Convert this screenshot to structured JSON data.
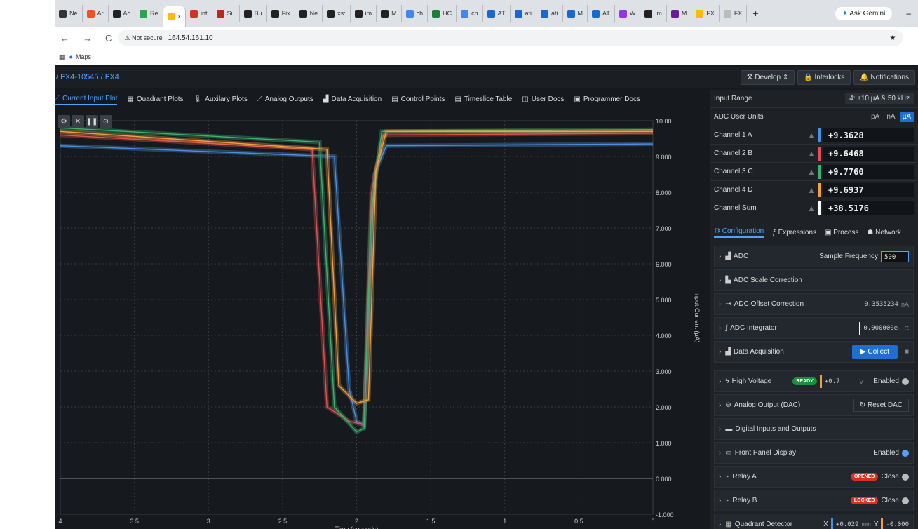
{
  "browser": {
    "tabs": [
      {
        "label": "Ne",
        "color": "#333"
      },
      {
        "label": "Ar",
        "color": "#f25022"
      },
      {
        "label": "Ac",
        "color": "#222"
      },
      {
        "label": "Re",
        "color": "#2da44e"
      },
      {
        "label": "x",
        "color": "#fbbc04",
        "active": true
      },
      {
        "label": "int",
        "color": "#d93025"
      },
      {
        "label": "Su",
        "color": "#c5221f"
      },
      {
        "label": "Bu",
        "color": "#222"
      },
      {
        "label": "Fix",
        "color": "#222"
      },
      {
        "label": "Ne",
        "color": "#222"
      },
      {
        "label": "xs:",
        "color": "#222"
      },
      {
        "label": "im",
        "color": "#222"
      },
      {
        "label": "M",
        "color": "#222"
      },
      {
        "label": "ch",
        "color": "#4285f4"
      },
      {
        "label": "HC",
        "color": "#188038"
      },
      {
        "label": "ch",
        "color": "#4285f4"
      },
      {
        "label": "AT",
        "color": "#1967d2"
      },
      {
        "label": "ati",
        "color": "#1967d2"
      },
      {
        "label": "ati",
        "color": "#1967d2"
      },
      {
        "label": "M",
        "color": "#1967d2"
      },
      {
        "label": "AT",
        "color": "#1967d2"
      },
      {
        "label": "W",
        "color": "#9334e6"
      },
      {
        "label": "im",
        "color": "#222"
      },
      {
        "label": "M",
        "color": "#6a1b9a"
      },
      {
        "label": "FX",
        "color": "#fbbc04"
      },
      {
        "label": "FX",
        "color": "#bbb"
      }
    ],
    "new_tab": "+",
    "gemini": "Ask Gemini",
    "minimize": "–",
    "not_secure": "Not secure",
    "url": "164.54.161.10",
    "bookmark": "Maps"
  },
  "app": {
    "breadcrumb": "/ FX4-10545 / FX4",
    "header_buttons": [
      "Develop ⇕",
      "Interlocks",
      "Notifications"
    ],
    "plot_tabs": [
      {
        "label": "Current Input Plot",
        "icon": "line-chart-icon",
        "active": true
      },
      {
        "label": "Quadrant Plots",
        "icon": "grid-icon"
      },
      {
        "label": "Auxilary Plots",
        "icon": "thermometer-icon"
      },
      {
        "label": "Analog Outputs",
        "icon": "line-chart-icon"
      },
      {
        "label": "Data Acquisition",
        "icon": "area-chart-icon"
      },
      {
        "label": "Control Points",
        "icon": "table-icon"
      },
      {
        "label": "Timeslice Table",
        "icon": "table-icon"
      },
      {
        "label": "User Docs",
        "icon": "book-icon"
      },
      {
        "label": "Programmer Docs",
        "icon": "code-icon"
      }
    ]
  },
  "chart_data": {
    "type": "line",
    "xlabel": "Time (seconds)",
    "ylabel": "Input Current (µA)",
    "xlim": [
      4,
      0
    ],
    "ylim": [
      -1,
      10
    ],
    "x_ticks": [
      "4",
      "3.5",
      "3",
      "2.5",
      "2",
      "1.5",
      "1",
      "0.5",
      "0"
    ],
    "y_ticks": [
      "10.00",
      "9.000",
      "8.000",
      "7.000",
      "6.000",
      "5.000",
      "4.000",
      "3.000",
      "2.000",
      "1.000",
      "0.000",
      "-1.000"
    ],
    "grid": true,
    "series": [
      {
        "color": "#4a90e2",
        "x": [
          4,
          2.15,
          2.05,
          2.0,
          1.95,
          1.88,
          1.8,
          0
        ],
        "y": [
          9.3,
          9.0,
          2.5,
          1.6,
          1.5,
          8.5,
          9.3,
          9.35
        ]
      },
      {
        "color": "#e05252",
        "x": [
          4,
          2.3,
          2.2,
          2.05,
          1.95,
          1.9,
          1.82,
          0
        ],
        "y": [
          9.6,
          9.2,
          2.0,
          1.6,
          1.5,
          8.0,
          9.6,
          9.65
        ]
      },
      {
        "color": "#3cb371",
        "x": [
          4,
          2.25,
          2.15,
          2.0,
          1.95,
          1.9,
          1.83,
          0
        ],
        "y": [
          9.8,
          9.4,
          2.0,
          1.3,
          1.4,
          7.5,
          9.7,
          9.75
        ]
      },
      {
        "color": "#f0a040",
        "x": [
          4,
          2.2,
          2.12,
          2.0,
          1.92,
          1.87,
          1.8,
          0
        ],
        "y": [
          9.7,
          9.2,
          2.6,
          2.1,
          2.2,
          8.6,
          9.7,
          9.7
        ]
      }
    ]
  },
  "panel": {
    "input_range_label": "Input Range",
    "input_range_value": "4: ±10 µA & 50 kHz",
    "adc_units_label": "ADC User Units",
    "units": [
      "pA",
      "nA",
      "µA"
    ],
    "channels": [
      {
        "label": "Channel 1 A",
        "value": "+9.3628",
        "color": "#4a90e2"
      },
      {
        "label": "Channel 2 B",
        "value": "+9.6468",
        "color": "#e05252"
      },
      {
        "label": "Channel 3 C",
        "value": "+9.7760",
        "color": "#3cb371"
      },
      {
        "label": "Channel 4 D",
        "value": "+9.6937",
        "color": "#f0a040"
      },
      {
        "label": "Channel Sum",
        "value": "+38.5176",
        "color": "#ffffff"
      }
    ],
    "cfg_tabs": [
      "Configuration",
      "Expressions",
      "Process",
      "Network"
    ],
    "sections": {
      "adc": "ADC",
      "sample_freq_label": "Sample Frequency",
      "sample_freq": "500",
      "scale": "ADC Scale Correction",
      "offset": "ADC Offset Correction",
      "offset_val": "0.3535234",
      "offset_unit": "nA",
      "integrator": "ADC Integrator",
      "integrator_val": "0.000000e-",
      "integrator_unit": "C",
      "daq": "Data Acquisition",
      "collect": "▶ Collect",
      "hv": "High Voltage",
      "hv_badge": "READY",
      "hv_val": "+0.7",
      "hv_unit": "V",
      "hv_enabled": "Enabled",
      "dac": "Analog Output (DAC)",
      "reset_dac": "Reset DAC",
      "dio": "Digital Inputs and Outputs",
      "fpd": "Front Panel Display",
      "fpd_enabled": "Enabled",
      "relay_a": "Relay A",
      "relay_a_badge": "OPENED",
      "relay_a_btn": "Close",
      "relay_b": "Relay B",
      "relay_b_badge": "LOCKED",
      "relay_b_btn": "Close",
      "quad": "Quadrant Detector",
      "quad_x_label": "X",
      "quad_x": "+0.029",
      "quad_unit": "mm",
      "quad_y_label": "Y",
      "quad_y": "-0.000"
    }
  }
}
